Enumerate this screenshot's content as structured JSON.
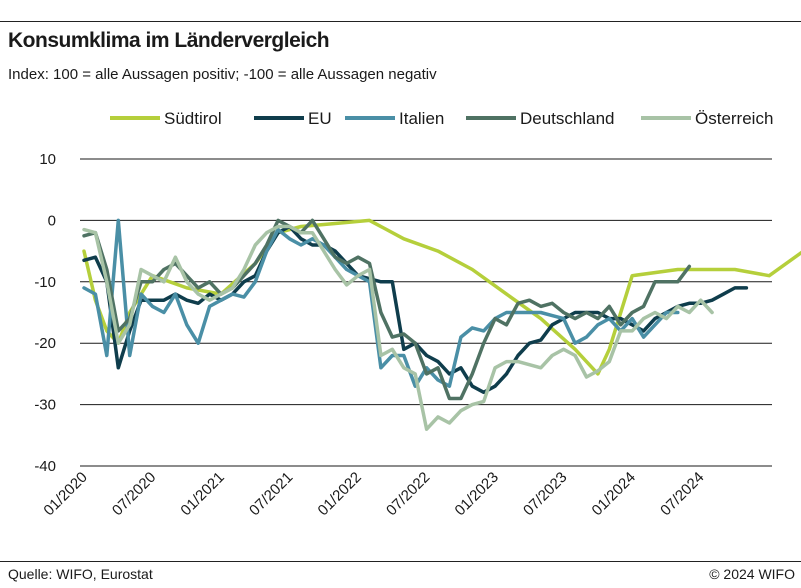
{
  "header": {
    "title": "Konsumklima im Ländervergleich",
    "subtitle": "Index: 100 = alle Aussagen positiv; -100 =  alle Aussagen negativ"
  },
  "footer": {
    "source": "Quelle: WIFO, Eurostat",
    "copyright": "© 2024 WIFO"
  },
  "chart_data": {
    "type": "line",
    "title": "Konsumklima im Ländervergleich",
    "subtitle": "Index: 100 = alle Aussagen positiv; -100 =  alle Aussagen negativ",
    "x_ticks": [
      "01/2020",
      "07/2020",
      "01/2021",
      "07/2021",
      "01/2022",
      "07/2022",
      "01/2023",
      "07/2023",
      "01/2024",
      "07/2024"
    ],
    "ylim": [
      -40,
      10
    ],
    "yticks": [
      10,
      0,
      -10,
      -20,
      -30,
      -40
    ],
    "grid": true,
    "legend_position": "top",
    "series": [
      {
        "name": "Südtirol",
        "color": "#b5cf3b",
        "points": [
          [
            0,
            -5
          ],
          [
            1,
            -13
          ],
          [
            2,
            -18
          ],
          [
            3,
            -20
          ],
          [
            4,
            -15
          ],
          [
            6,
            -9
          ],
          [
            9,
            -11
          ],
          [
            12,
            -12
          ],
          [
            15,
            -7
          ],
          [
            17,
            -2
          ],
          [
            19,
            -1
          ],
          [
            22,
            -0.5
          ],
          [
            25,
            0
          ],
          [
            28,
            -3
          ],
          [
            31,
            -5
          ],
          [
            34,
            -8
          ],
          [
            37,
            -12
          ],
          [
            40,
            -16
          ],
          [
            43,
            -21
          ],
          [
            45,
            -25
          ],
          [
            46,
            -21
          ],
          [
            48,
            -9
          ],
          [
            52,
            -8
          ],
          [
            57,
            -8
          ],
          [
            60,
            -9
          ],
          [
            63,
            -5
          ],
          [
            67,
            -5.5
          ],
          [
            72,
            -6
          ]
        ]
      },
      {
        "name": "EU",
        "color": "#0f3d4c",
        "points": [
          [
            0,
            -6.5
          ],
          [
            1,
            -6
          ],
          [
            2,
            -10
          ],
          [
            3,
            -24
          ],
          [
            4,
            -18
          ],
          [
            5,
            -13
          ],
          [
            6,
            -13
          ],
          [
            7,
            -13
          ],
          [
            8,
            -12
          ],
          [
            9,
            -13
          ],
          [
            10,
            -13.5
          ],
          [
            11,
            -12
          ],
          [
            12,
            -13
          ],
          [
            13,
            -12
          ],
          [
            14,
            -10
          ],
          [
            15,
            -9
          ],
          [
            16,
            -5
          ],
          [
            17,
            -2
          ],
          [
            18,
            -1
          ],
          [
            19,
            -3
          ],
          [
            20,
            -4
          ],
          [
            21,
            -4
          ],
          [
            22,
            -5
          ],
          [
            23,
            -7
          ],
          [
            24,
            -9
          ],
          [
            25,
            -9.5
          ],
          [
            26,
            -10
          ],
          [
            27,
            -10
          ],
          [
            28,
            -21
          ],
          [
            29,
            -20
          ],
          [
            30,
            -22
          ],
          [
            31,
            -23
          ],
          [
            32,
            -25
          ],
          [
            33,
            -24
          ],
          [
            34,
            -27
          ],
          [
            35,
            -28
          ],
          [
            36,
            -27
          ],
          [
            37,
            -25
          ],
          [
            38,
            -22
          ],
          [
            39,
            -20
          ],
          [
            40,
            -19.5
          ],
          [
            41,
            -17
          ],
          [
            42,
            -16
          ],
          [
            43,
            -15
          ],
          [
            44,
            -15
          ],
          [
            45,
            -15
          ],
          [
            46,
            -16
          ],
          [
            47,
            -16
          ],
          [
            48,
            -17
          ],
          [
            49,
            -18
          ],
          [
            50,
            -16
          ],
          [
            51,
            -15
          ],
          [
            52,
            -14
          ],
          [
            53,
            -13.5
          ],
          [
            54,
            -13.5
          ],
          [
            55,
            -13
          ],
          [
            56,
            -12
          ],
          [
            57,
            -11
          ],
          [
            58,
            -11
          ]
        ]
      },
      {
        "name": "Italien",
        "color": "#4a8fa6",
        "points": [
          [
            0,
            -11
          ],
          [
            1,
            -12
          ],
          [
            2,
            -22
          ],
          [
            3,
            0
          ],
          [
            4,
            -22
          ],
          [
            5,
            -12
          ],
          [
            6,
            -14
          ],
          [
            7,
            -15
          ],
          [
            8,
            -12
          ],
          [
            9,
            -17
          ],
          [
            10,
            -20
          ],
          [
            11,
            -14
          ],
          [
            12,
            -13
          ],
          [
            13,
            -12
          ],
          [
            14,
            -12.5
          ],
          [
            15,
            -10
          ],
          [
            16,
            -5
          ],
          [
            17,
            -1.5
          ],
          [
            18,
            -3
          ],
          [
            19,
            -4
          ],
          [
            20,
            -3
          ],
          [
            21,
            -4
          ],
          [
            22,
            -6
          ],
          [
            23,
            -8
          ],
          [
            24,
            -9
          ],
          [
            25,
            -10
          ],
          [
            26,
            -24
          ],
          [
            27,
            -22
          ],
          [
            28,
            -22
          ],
          [
            29,
            -27
          ],
          [
            30,
            -24
          ],
          [
            31,
            -26
          ],
          [
            32,
            -27
          ],
          [
            33,
            -19
          ],
          [
            34,
            -17.5
          ],
          [
            35,
            -18
          ],
          [
            36,
            -16
          ],
          [
            37,
            -15
          ],
          [
            38,
            -15
          ],
          [
            39,
            -15
          ],
          [
            40,
            -15
          ],
          [
            41,
            -15.5
          ],
          [
            42,
            -16
          ],
          [
            43,
            -20
          ],
          [
            44,
            -19
          ],
          [
            45,
            -17
          ],
          [
            46,
            -16
          ],
          [
            47,
            -18
          ],
          [
            48,
            -16
          ],
          [
            49,
            -19
          ],
          [
            50,
            -17
          ],
          [
            51,
            -15
          ],
          [
            52,
            -15
          ]
        ]
      },
      {
        "name": "Deutschland",
        "color": "#4f7263",
        "points": [
          [
            0,
            -2.5
          ],
          [
            1,
            -2
          ],
          [
            2,
            -8
          ],
          [
            3,
            -18
          ],
          [
            4,
            -16
          ],
          [
            5,
            -10
          ],
          [
            6,
            -10
          ],
          [
            7,
            -8
          ],
          [
            8,
            -7
          ],
          [
            9,
            -9
          ],
          [
            10,
            -11
          ],
          [
            11,
            -10
          ],
          [
            12,
            -12
          ],
          [
            13,
            -11
          ],
          [
            14,
            -9
          ],
          [
            15,
            -7
          ],
          [
            16,
            -4
          ],
          [
            17,
            0
          ],
          [
            18,
            -1
          ],
          [
            19,
            -2
          ],
          [
            20,
            0
          ],
          [
            21,
            -3
          ],
          [
            22,
            -6
          ],
          [
            23,
            -7
          ],
          [
            24,
            -6
          ],
          [
            25,
            -7
          ],
          [
            26,
            -15
          ],
          [
            27,
            -19
          ],
          [
            28,
            -18.5
          ],
          [
            29,
            -20
          ],
          [
            30,
            -25
          ],
          [
            31,
            -24
          ],
          [
            32,
            -29
          ],
          [
            33,
            -29
          ],
          [
            34,
            -25
          ],
          [
            35,
            -20
          ],
          [
            36,
            -16
          ],
          [
            37,
            -17
          ],
          [
            38,
            -13.5
          ],
          [
            39,
            -13
          ],
          [
            40,
            -14
          ],
          [
            41,
            -13.5
          ],
          [
            42,
            -15
          ],
          [
            43,
            -16
          ],
          [
            44,
            -15
          ],
          [
            45,
            -16
          ],
          [
            46,
            -14
          ],
          [
            47,
            -17
          ],
          [
            48,
            -15
          ],
          [
            49,
            -14
          ],
          [
            50,
            -10
          ],
          [
            51,
            -10
          ],
          [
            52,
            -10
          ],
          [
            53,
            -7.5
          ]
        ]
      },
      {
        "name": "Österreich",
        "color": "#a8c3a6",
        "points": [
          [
            0,
            -1.5
          ],
          [
            1,
            -2
          ],
          [
            2,
            -10
          ],
          [
            3,
            -20
          ],
          [
            4,
            -17
          ],
          [
            5,
            -8
          ],
          [
            6,
            -9
          ],
          [
            7,
            -10
          ],
          [
            8,
            -6
          ],
          [
            9,
            -10
          ],
          [
            10,
            -12
          ],
          [
            11,
            -13
          ],
          [
            12,
            -12
          ],
          [
            13,
            -11
          ],
          [
            14,
            -8
          ],
          [
            15,
            -4
          ],
          [
            16,
            -2
          ],
          [
            17,
            -1
          ],
          [
            18,
            -1
          ],
          [
            19,
            -2
          ],
          [
            20,
            -2
          ],
          [
            21,
            -5
          ],
          [
            22,
            -8
          ],
          [
            23,
            -10.5
          ],
          [
            24,
            -9
          ],
          [
            25,
            -8
          ],
          [
            26,
            -22
          ],
          [
            27,
            -21
          ],
          [
            28,
            -24
          ],
          [
            29,
            -25
          ],
          [
            30,
            -34
          ],
          [
            31,
            -32
          ],
          [
            32,
            -33
          ],
          [
            33,
            -31
          ],
          [
            34,
            -30
          ],
          [
            35,
            -29.5
          ],
          [
            36,
            -24
          ],
          [
            37,
            -23
          ],
          [
            38,
            -23
          ],
          [
            39,
            -23.5
          ],
          [
            40,
            -24
          ],
          [
            41,
            -22
          ],
          [
            42,
            -21
          ],
          [
            43,
            -22
          ],
          [
            44,
            -25.5
          ],
          [
            45,
            -24.5
          ],
          [
            46,
            -23
          ],
          [
            47,
            -18
          ],
          [
            48,
            -18
          ],
          [
            49,
            -16
          ],
          [
            50,
            -15
          ],
          [
            51,
            -16
          ],
          [
            52,
            -14
          ],
          [
            53,
            -15
          ],
          [
            54,
            -13
          ],
          [
            55,
            -15
          ]
        ]
      }
    ]
  }
}
